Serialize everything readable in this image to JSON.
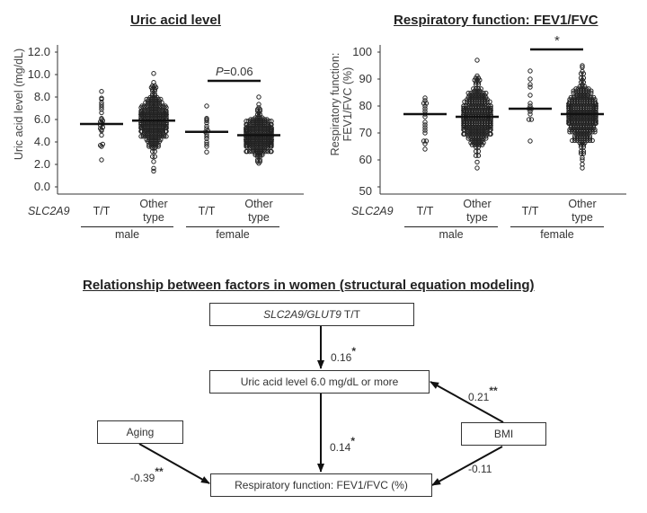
{
  "chart_data": [
    {
      "type": "scatter",
      "subtype": "dot-plot (beeswarm) with mean lines",
      "title": "Uric acid level",
      "ylabel": "Uric acid level (mg/dL)",
      "xlabel": "",
      "ylim": [
        0,
        12
      ],
      "yticks": [
        "0.0",
        "2.0",
        "4.0",
        "6.0",
        "8.0",
        "10.0",
        "12.0"
      ],
      "grid": false,
      "gene_label": "SLC2A9",
      "groups": [
        {
          "label": "male",
          "categories": [
            "T/T",
            "Other type"
          ]
        },
        {
          "label": "female",
          "categories": [
            "T/T",
            "Other type"
          ]
        }
      ],
      "categories": [
        "male T/T",
        "male Other type",
        "female T/T",
        "female Other type"
      ],
      "series": [
        {
          "name": "male T/T",
          "mean": 5.6,
          "min": 2.4,
          "max": 8.5,
          "points": [
            2.4,
            3.6,
            3.7,
            3.8,
            4.6,
            5.0,
            5.1,
            5.2,
            5.3,
            5.5,
            5.6,
            5.7,
            5.8,
            5.9,
            6.0,
            6.1,
            6.6,
            6.9,
            7.1,
            7.3,
            7.5,
            7.8,
            7.9,
            8.5
          ]
        },
        {
          "name": "male Other type",
          "mean": 5.9,
          "min": 1.4,
          "max": 10.1,
          "n_approx": "several hundred"
        },
        {
          "name": "female T/T",
          "mean": 4.9,
          "min": 3.1,
          "max": 7.2,
          "points": [
            3.1,
            3.6,
            3.8,
            4.0,
            4.3,
            4.5,
            4.7,
            4.9,
            5.0,
            5.2,
            5.4,
            5.7,
            5.9,
            6.0,
            6.1,
            7.2
          ]
        },
        {
          "name": "female Other type",
          "mean": 4.6,
          "min": 2.1,
          "max": 8.0,
          "n_approx": "several hundred"
        }
      ],
      "annotations": [
        {
          "text": "P =0.06",
          "between": [
            "female T/T",
            "female Other type"
          ]
        }
      ]
    },
    {
      "type": "scatter",
      "subtype": "dot-plot (beeswarm) with mean lines",
      "title": "Respiratory function: FEV1/FVC",
      "ylabel": "Respiratory function: FEV1/FVC (%)",
      "xlabel": "",
      "ylim": [
        50,
        100
      ],
      "yticks": [
        "50",
        "60",
        "70",
        "80",
        "90",
        "100"
      ],
      "grid": false,
      "gene_label": "SLC2A9",
      "groups": [
        {
          "label": "male",
          "categories": [
            "T/T",
            "Other type"
          ]
        },
        {
          "label": "female",
          "categories": [
            "T/T",
            "Other type"
          ]
        }
      ],
      "categories": [
        "male T/T",
        "male Other type",
        "female T/T",
        "female Other type"
      ],
      "series": [
        {
          "name": "male T/T",
          "mean": 77,
          "min": 64,
          "max": 83,
          "points": [
            64,
            66,
            67,
            67,
            70,
            71,
            72,
            73,
            74,
            76,
            77,
            78,
            79,
            80,
            81,
            81,
            82,
            83
          ]
        },
        {
          "name": "male Other type",
          "mean": 76,
          "min": 57,
          "max": 97,
          "n_approx": "several hundred"
        },
        {
          "name": "female T/T",
          "mean": 79,
          "min": 67,
          "max": 93,
          "points": [
            67,
            75,
            75,
            77,
            78,
            79,
            79,
            80,
            81,
            84,
            87,
            88,
            90,
            93
          ]
        },
        {
          "name": "female Other type",
          "mean": 77,
          "min": 57,
          "max": 95,
          "n_approx": "several hundred"
        }
      ],
      "annotations": [
        {
          "text": "*",
          "between": [
            "female T/T",
            "female Other type"
          ]
        }
      ]
    }
  ],
  "charts": {
    "uric": {
      "title": "Uric acid level",
      "ylabel": "Uric acid level  (mg/dL)",
      "yticks": [
        "12.0",
        "10.0",
        "8.0",
        "6.0",
        "4.0",
        "2.0",
        "0.0"
      ],
      "gene": "SLC2A9",
      "cats": [
        {
          "l1": "T/T",
          "l2": ""
        },
        {
          "l1": "Other",
          "l2": "type"
        },
        {
          "l1": "T/T",
          "l2": ""
        },
        {
          "l1": "Other",
          "l2": "type"
        }
      ],
      "groups": [
        "male",
        "female"
      ],
      "annotation": "=0.06",
      "annotation_p": "P"
    },
    "fev": {
      "title": "Respiratory function: FEV1/FVC",
      "ylabel1": "Respiratory function:",
      "ylabel2": "FEV1/FVC (%)",
      "yticks": [
        "100",
        "90",
        "80",
        "70",
        "60",
        "50"
      ],
      "gene": "SLC2A9",
      "cats": [
        {
          "l1": "T/T",
          "l2": ""
        },
        {
          "l1": "Other",
          "l2": "type"
        },
        {
          "l1": "T/T",
          "l2": ""
        },
        {
          "l1": "Other",
          "l2": "type"
        }
      ],
      "groups": [
        "male",
        "female"
      ],
      "annotation": "*"
    }
  },
  "diagram": {
    "title": "Relationship between factors in women (structural equation modeling)",
    "nodes": {
      "gene": {
        "italic": "SLC2A9/GLUT9",
        "rest": " T/T"
      },
      "uric": "Uric acid level  6.0 mg/dL or more",
      "resp": "Respiratory function: FEV1/FVC (%)",
      "aging": "Aging",
      "bmi": "BMI"
    },
    "edges": {
      "gene_uric": {
        "value": "0.16",
        "sig": "*"
      },
      "uric_resp": {
        "value": "0.14",
        "sig": "*"
      },
      "aging_resp": {
        "value": "-0.39",
        "sig": "**"
      },
      "bmi_uric": {
        "value": "0.21",
        "sig": "**"
      },
      "bmi_resp": {
        "value": "-0.11",
        "sig": ""
      }
    }
  }
}
